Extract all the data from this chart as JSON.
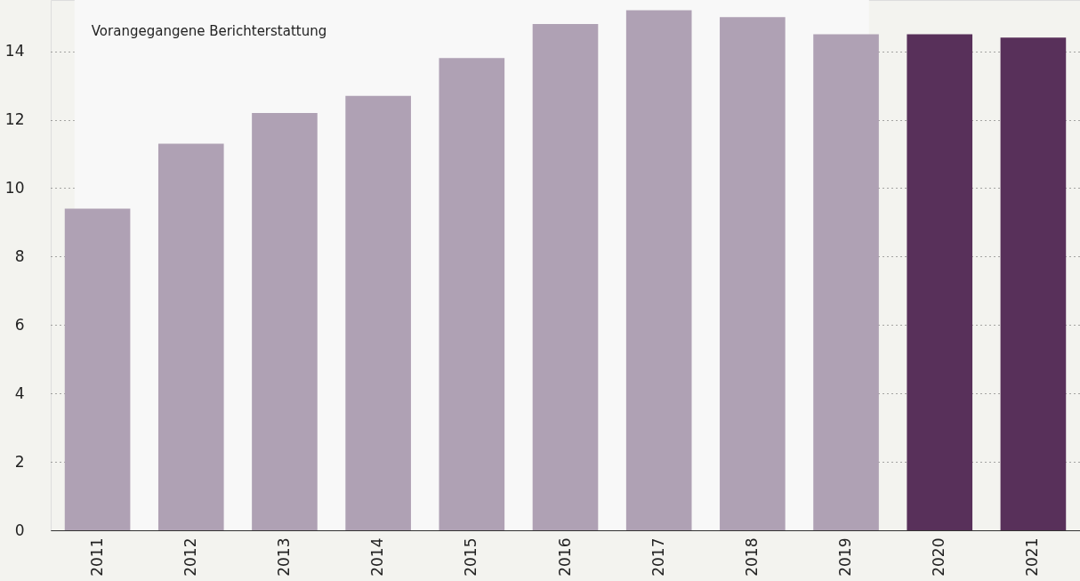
{
  "chart_data": {
    "type": "bar",
    "categories": [
      "2011",
      "2012",
      "2013",
      "2014",
      "2015",
      "2016",
      "2017",
      "2018",
      "2019",
      "2020",
      "2021"
    ],
    "series": [
      {
        "color": "#afa1b4",
        "values": [
          9.4,
          11.3,
          12.2,
          12.7,
          13.8,
          14.8,
          15.2,
          15.0,
          14.5,
          null,
          null
        ]
      },
      {
        "color": "#58305a",
        "values": [
          null,
          null,
          null,
          null,
          null,
          null,
          null,
          null,
          null,
          14.5,
          14.4
        ]
      }
    ],
    "ylim": [
      0,
      15.5
    ],
    "yticks": [
      0,
      2,
      4,
      6,
      8,
      10,
      12,
      14
    ],
    "grid": "y",
    "bands": [
      {
        "axis": "x",
        "from": "2011",
        "to": "2019",
        "label": "Vorangegangene Berichterstattung",
        "color": "#f8f8f8"
      }
    ]
  }
}
